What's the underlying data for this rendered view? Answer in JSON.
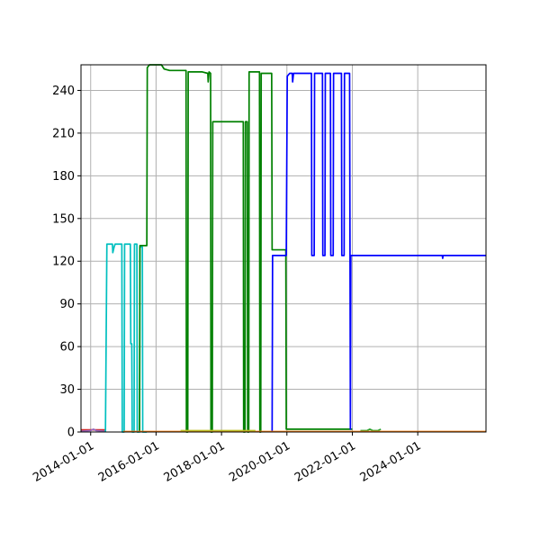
{
  "chart_data": {
    "type": "line",
    "title": "",
    "xlabel": "",
    "ylabel": "",
    "x_axis": {
      "type": "date",
      "range": [
        "2013-09-15",
        "2026-02-01"
      ],
      "ticks": [
        "2014-01-01",
        "2016-01-01",
        "2018-01-01",
        "2020-01-01",
        "2022-01-01",
        "2024-01-01"
      ]
    },
    "y_axis": {
      "range": [
        0,
        258
      ],
      "ticks": [
        "0",
        "30",
        "60",
        "90",
        "120",
        "150",
        "180",
        "210",
        "240"
      ]
    },
    "grid": true,
    "legend": "none",
    "series": [
      {
        "color": "#d62728",
        "points": [
          [
            "2013-09-15",
            1.5
          ],
          [
            "2014-06-15",
            1.5
          ]
        ]
      },
      {
        "color": "#9467bd",
        "points": [
          [
            "2013-09-15",
            0.5
          ],
          [
            "2014-01-01",
            1
          ],
          [
            "2014-02-01",
            2
          ],
          [
            "2014-03-01",
            1
          ],
          [
            "2014-06-15",
            0.5
          ]
        ]
      },
      {
        "color": "#00bfbf",
        "points": [
          [
            "2014-06-15",
            0
          ],
          [
            "2014-07-01",
            132
          ],
          [
            "2014-09-01",
            132
          ],
          [
            "2014-09-05",
            126
          ],
          [
            "2014-09-20",
            130
          ],
          [
            "2014-10-01",
            132
          ],
          [
            "2014-12-15",
            132
          ],
          [
            "2014-12-20",
            0
          ],
          [
            "2015-01-10",
            0
          ],
          [
            "2015-01-15",
            132
          ],
          [
            "2015-03-20",
            132
          ],
          [
            "2015-03-25",
            62
          ],
          [
            "2015-04-05",
            62
          ],
          [
            "2015-04-10",
            0
          ],
          [
            "2015-05-01",
            0
          ],
          [
            "2015-05-05",
            132
          ],
          [
            "2015-06-01",
            132
          ],
          [
            "2015-06-05",
            0
          ],
          [
            "2015-07-01",
            0
          ],
          [
            "2015-07-05",
            130
          ],
          [
            "2015-08-01",
            130
          ],
          [
            "2015-08-05",
            0
          ],
          [
            "2015-09-20",
            0
          ]
        ]
      },
      {
        "color": "#008000",
        "points": [
          [
            "2015-07-01",
            0
          ],
          [
            "2015-07-05",
            131
          ],
          [
            "2015-09-20",
            131
          ],
          [
            "2015-09-25",
            256
          ],
          [
            "2015-10-20",
            258
          ],
          [
            "2015-12-01",
            258
          ],
          [
            "2016-03-01",
            258
          ],
          [
            "2016-04-01",
            255
          ],
          [
            "2016-06-01",
            254
          ],
          [
            "2016-12-01",
            254
          ],
          [
            "2016-12-05",
            0
          ],
          [
            "2016-12-20",
            0
          ],
          [
            "2016-12-25",
            253
          ],
          [
            "2017-06-01",
            253
          ],
          [
            "2017-08-01",
            252
          ],
          [
            "2017-08-05",
            246
          ],
          [
            "2017-08-15",
            253
          ],
          [
            "2017-09-01",
            252
          ],
          [
            "2017-09-05",
            0
          ],
          [
            "2017-09-20",
            0
          ],
          [
            "2017-09-25",
            218
          ],
          [
            "2018-09-01",
            218
          ],
          [
            "2018-09-05",
            0
          ],
          [
            "2018-09-20",
            0
          ],
          [
            "2018-09-25",
            218
          ],
          [
            "2018-10-15",
            218
          ],
          [
            "2018-10-20",
            0
          ],
          [
            "2018-11-01",
            0
          ],
          [
            "2018-11-05",
            253
          ],
          [
            "2019-03-01",
            253
          ],
          [
            "2019-03-05",
            0
          ],
          [
            "2019-03-15",
            0
          ],
          [
            "2019-03-20",
            252
          ],
          [
            "2019-07-15",
            252
          ],
          [
            "2019-07-20",
            128
          ],
          [
            "2019-12-20",
            128
          ],
          [
            "2019-12-25",
            2
          ],
          [
            "2021-12-31",
            2
          ]
        ]
      },
      {
        "color": "#0000ff",
        "points": [
          [
            "2019-07-20",
            0
          ],
          [
            "2019-07-25",
            124
          ],
          [
            "2019-12-25",
            124
          ],
          [
            "2020-01-05",
            250
          ],
          [
            "2020-02-01",
            252
          ],
          [
            "2020-03-01",
            252
          ],
          [
            "2020-03-05",
            246
          ],
          [
            "2020-03-15",
            252
          ],
          [
            "2020-10-01",
            252
          ],
          [
            "2020-10-05",
            124
          ],
          [
            "2020-11-01",
            124
          ],
          [
            "2020-11-05",
            252
          ],
          [
            "2021-02-01",
            252
          ],
          [
            "2021-02-05",
            124
          ],
          [
            "2021-03-01",
            124
          ],
          [
            "2021-03-05",
            252
          ],
          [
            "2021-05-01",
            252
          ],
          [
            "2021-05-05",
            124
          ],
          [
            "2021-06-01",
            124
          ],
          [
            "2021-06-05",
            252
          ],
          [
            "2021-09-01",
            252
          ],
          [
            "2021-09-05",
            124
          ],
          [
            "2021-10-01",
            124
          ],
          [
            "2021-10-05",
            252
          ],
          [
            "2021-12-01",
            252
          ],
          [
            "2021-12-10",
            2
          ],
          [
            "2021-12-15",
            124
          ],
          [
            "2024-10-01",
            124
          ],
          [
            "2024-10-05",
            122
          ],
          [
            "2024-10-10",
            124
          ],
          [
            "2026-02-01",
            124
          ]
        ]
      },
      {
        "color": "#2ca02c",
        "points": [
          [
            "2022-04-01",
            1
          ],
          [
            "2022-05-01",
            1
          ],
          [
            "2022-06-15",
            1
          ],
          [
            "2022-07-15",
            2
          ],
          [
            "2022-08-15",
            1
          ],
          [
            "2022-10-15",
            1
          ],
          [
            "2022-11-15",
            2
          ]
        ]
      },
      {
        "color": "#ff7f0e",
        "points": [
          [
            "2015-01-01",
            0.3
          ],
          [
            "2018-10-01",
            0.3
          ],
          [
            "2022-01-01",
            0.3
          ],
          [
            "2026-02-01",
            0.3
          ]
        ]
      },
      {
        "color": "#bcbd22",
        "points": [
          [
            "2016-10-01",
            1
          ],
          [
            "2019-01-15",
            1
          ]
        ]
      }
    ]
  }
}
